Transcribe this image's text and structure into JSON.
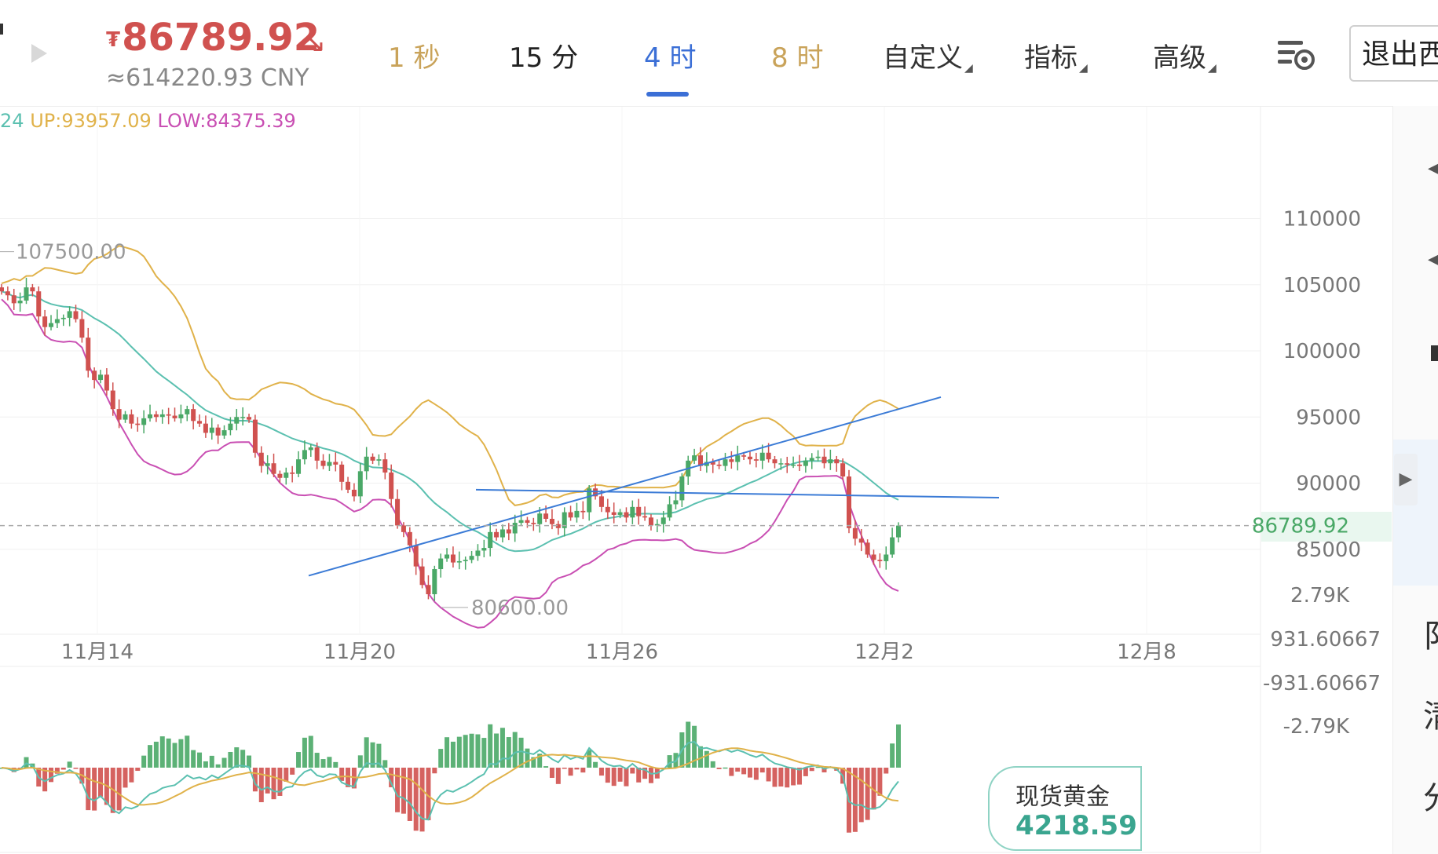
{
  "ticker": {
    "currency_symbol": "₮",
    "price": "86789.92",
    "cny_value": "≈614220.93 CNY",
    "trend_icon": "arrow-down-right-icon",
    "up_color": "#4aa867",
    "down_color": "#d0514f"
  },
  "intervals": {
    "items": [
      "1 秒",
      "15 分",
      "4 时",
      "8 时"
    ],
    "active": "4 时",
    "custom_label": "自定义",
    "indicators_label": "指标",
    "advanced_label": "高级",
    "exit_label": "退出西"
  },
  "boll": {
    "mid_fragment": "24",
    "up_label": "UP:93957.09",
    "low_label": "LOW:84375.39",
    "colors": {
      "up": "#e0b24a",
      "mid": "#5bc0b0",
      "low": "#c94fb3"
    }
  },
  "main_chart": {
    "y_ticks": [
      "110000",
      "105000",
      "100000",
      "95000",
      "90000",
      "85000"
    ],
    "current_price_label": "86789.92",
    "high_marker": "107500.00",
    "low_marker": "80600.00",
    "x_ticks": [
      "11月14",
      "11月20",
      "11月26",
      "12月2",
      "12月8"
    ]
  },
  "macd_chart": {
    "y_ticks": [
      "2.79K",
      "931.60667",
      "-931.60667",
      "-2.79K"
    ]
  },
  "gold_badge": {
    "name": "现货黄金",
    "value": "4218.59"
  },
  "right_panel": {
    "chars": [
      "阝",
      "淸",
      "分"
    ]
  },
  "chart_data": {
    "type": "candlestick",
    "interval": "4 时",
    "y_range": [
      78000,
      112000
    ],
    "current_price": 86789.92,
    "marked_high": 107500.0,
    "marked_low": 80600.0,
    "close_approx": [
      104500,
      104200,
      103600,
      103800,
      104800,
      104500,
      102600,
      101800,
      102100,
      102400,
      102500,
      103000,
      102400,
      101000,
      98500,
      97800,
      98200,
      97000,
      95600,
      94800,
      95200,
      94500,
      94400,
      94900,
      95200,
      95000,
      95200,
      95100,
      94900,
      95200,
      95600,
      94700,
      94500,
      93800,
      94200,
      93600,
      94000,
      94500,
      95000,
      95000,
      94800,
      92300,
      91300,
      91500,
      90700,
      90400,
      90800,
      90700,
      91800,
      92500,
      92700,
      91700,
      91300,
      91600,
      91400,
      90100,
      89500,
      89000,
      90900,
      92000,
      91700,
      91800,
      90800,
      88800,
      86800,
      86300,
      85300,
      83700,
      82300,
      81600,
      83500,
      84300,
      84600,
      84000,
      84100,
      84200,
      84500,
      84900,
      85100,
      86300,
      85900,
      86500,
      86200,
      87000,
      87200,
      87000,
      86900,
      87700,
      87300,
      86900,
      86600,
      87800,
      87400,
      87900,
      87800,
      89600,
      89000,
      88200,
      87800,
      87600,
      87800,
      87400,
      88200,
      87500,
      87400,
      86800,
      86900,
      87400,
      88400,
      88700,
      90500,
      91700,
      92100,
      91300,
      91600,
      91400,
      91300,
      91800,
      91600,
      92100,
      92000,
      91800,
      91700,
      92300,
      91800,
      91500,
      91500,
      91400,
      91400,
      91300,
      91700,
      91900,
      92000,
      91500,
      91800,
      91500,
      90500,
      86600,
      85800,
      85500,
      84600,
      84200,
      84100,
      84600,
      85900,
      86790
    ],
    "boll": {
      "up": 93957.09,
      "low": 84375.39
    },
    "trendlines": [
      {
        "from_date": "11月18",
        "from_price": 83000,
        "to_date": "12月5",
        "to_price": 96500
      },
      {
        "from_date": "11月23",
        "from_price": 89500,
        "to_date": "12月7",
        "to_price": 88900
      }
    ]
  }
}
